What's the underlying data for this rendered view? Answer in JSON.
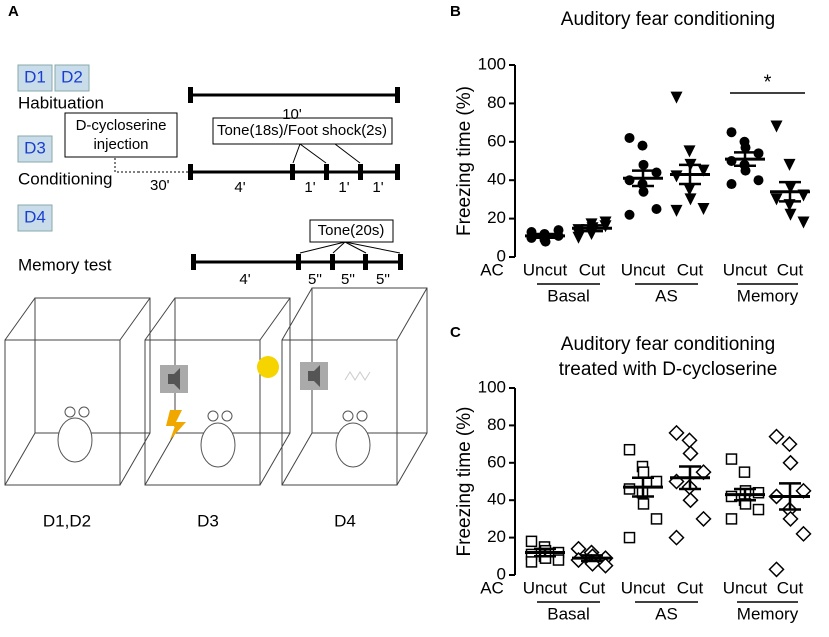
{
  "panel_a": {
    "label": "A",
    "days": [
      "D1",
      "D2",
      "D3",
      "D4"
    ],
    "phases": [
      "Habituation",
      "Conditioning",
      "Memory test"
    ],
    "injection": [
      "D-cycloserine",
      "injection"
    ],
    "pre_delay": "30'",
    "habituation_time": "10'",
    "conditioning_stimulus": "Tone(18s)/Foot shock(2s)",
    "conditioning_times": [
      "4'",
      "1'",
      "1'",
      "1'"
    ],
    "test_stimulus": "Tone(20s)",
    "test_times": [
      "4'",
      "5''",
      "5''",
      "5''"
    ],
    "contexts": [
      "D1,D2",
      "D3",
      "D4"
    ]
  },
  "chart_data": [
    {
      "type": "scatter",
      "panel": "B",
      "title_lines": [
        "Auditory fear conditioning"
      ],
      "ylabel": "Freezing time (%)",
      "row_label": "AC",
      "categories": [
        "Uncut",
        "Cut",
        "Uncut",
        "Cut",
        "Uncut",
        "Cut"
      ],
      "groups": [
        "Basal",
        "AS",
        "Memory"
      ],
      "markers": [
        "circle",
        "triangle-down",
        "circle",
        "triangle-down",
        "circle",
        "triangle-down"
      ],
      "color": "#000000",
      "points": [
        [
          10,
          12,
          8,
          11,
          13,
          9,
          11,
          14,
          10
        ],
        [
          10,
          12,
          15,
          18,
          14,
          17,
          13,
          16,
          12
        ],
        [
          62,
          58,
          48,
          44,
          40,
          38,
          34,
          25,
          22
        ],
        [
          83,
          55,
          48,
          45,
          42,
          35,
          30,
          25,
          24
        ],
        [
          65,
          60,
          57,
          54,
          50,
          48,
          45,
          40,
          38
        ],
        [
          68,
          48,
          36,
          32,
          30,
          27,
          22,
          18
        ]
      ],
      "means": [
        11,
        15,
        41,
        43,
        51,
        34
      ],
      "sems": [
        1,
        1.5,
        4,
        5,
        3.5,
        5
      ],
      "annotations": [
        {
          "text": "*",
          "between": [
            4,
            5
          ]
        }
      ],
      "ylim": [
        0,
        100
      ],
      "yticks": [
        0,
        20,
        40,
        60,
        80,
        100
      ]
    },
    {
      "type": "scatter",
      "panel": "C",
      "title_lines": [
        "Auditory fear conditioning",
        "treated with D-cycloserine"
      ],
      "ylabel": "Freezing time (%)",
      "row_label": "AC",
      "categories": [
        "Uncut",
        "Cut",
        "Uncut",
        "Cut",
        "Uncut",
        "Cut"
      ],
      "groups": [
        "Basal",
        "AS",
        "Memory"
      ],
      "markers": [
        "square",
        "diamond",
        "square",
        "diamond",
        "square",
        "diamond"
      ],
      "color": "#000000",
      "points": [
        [
          18,
          15,
          13,
          12,
          11,
          10,
          9,
          8,
          7
        ],
        [
          14,
          12,
          10,
          9,
          8,
          7,
          6,
          5
        ],
        [
          67,
          58,
          55,
          50,
          46,
          44,
          38,
          30,
          20
        ],
        [
          76,
          72,
          65,
          55,
          50,
          47,
          40,
          30,
          20
        ],
        [
          62,
          55,
          45,
          44,
          42,
          40,
          38,
          35,
          30
        ],
        [
          74,
          70,
          60,
          45,
          42,
          35,
          30,
          22,
          3
        ]
      ],
      "means": [
        12,
        9,
        47,
        52,
        43,
        42
      ],
      "sems": [
        2,
        1.5,
        5,
        6,
        3,
        7
      ],
      "annotations": [],
      "ylim": [
        0,
        100
      ],
      "yticks": [
        0,
        20,
        40,
        60,
        80,
        100
      ]
    }
  ]
}
